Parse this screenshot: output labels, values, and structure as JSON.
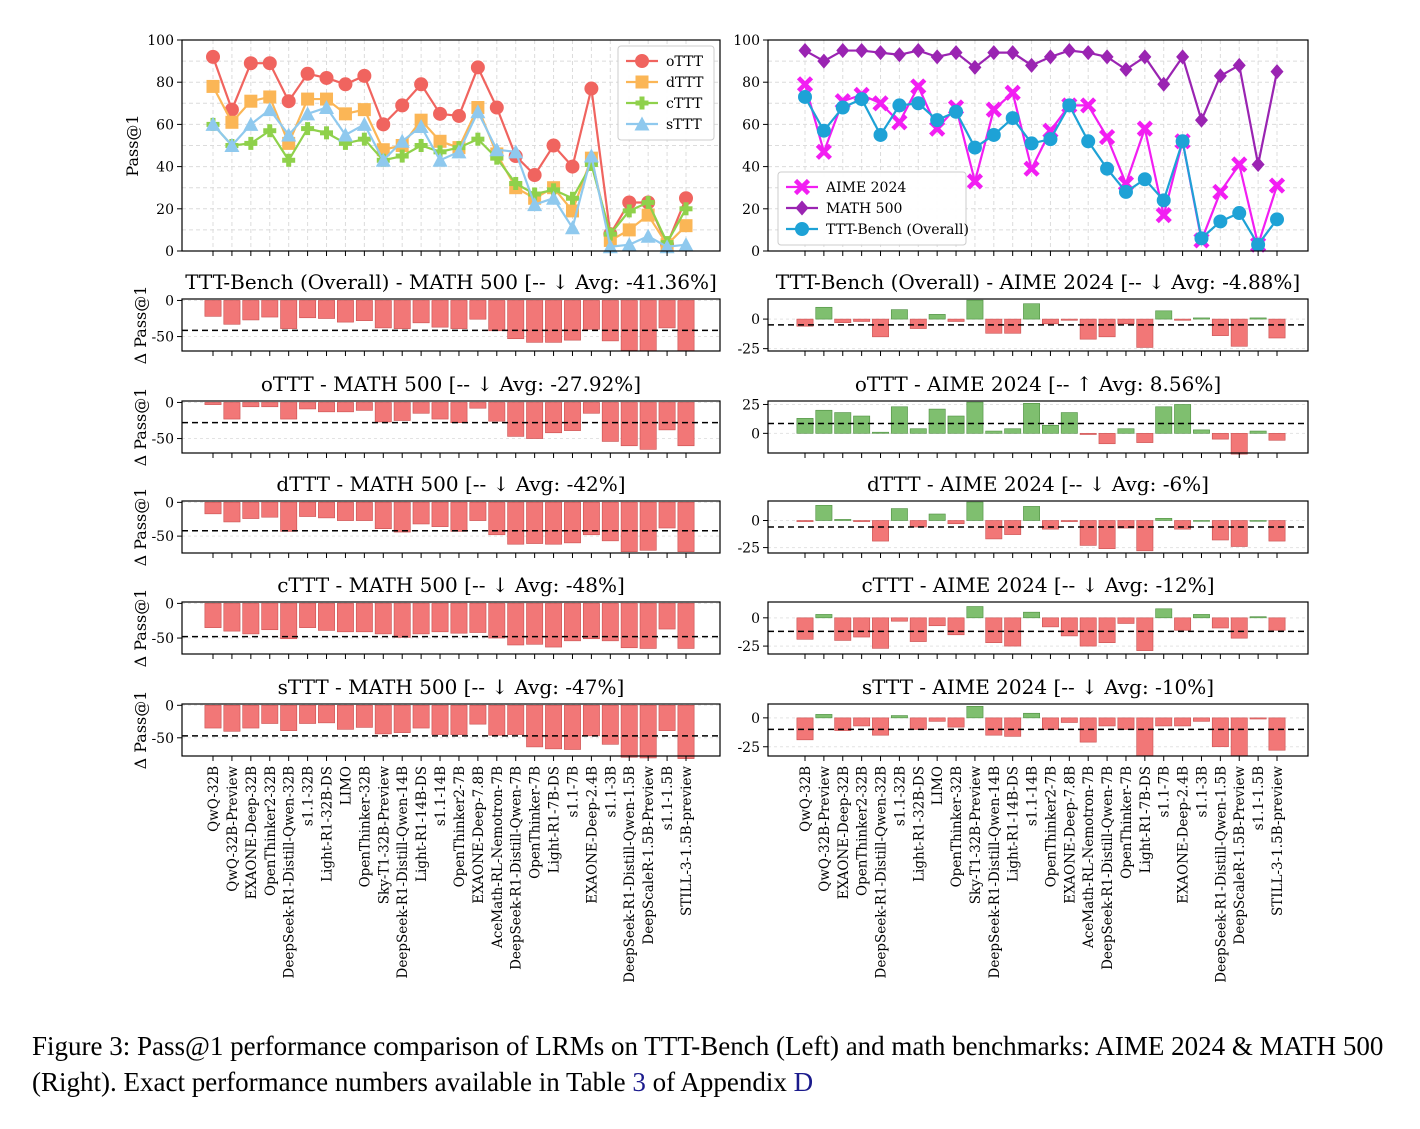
{
  "chart_data": [
    {
      "type": "line",
      "ylabel": "Pass@1",
      "ylim": [
        0,
        100
      ],
      "yticks": [
        "0",
        "20",
        "40",
        "60",
        "80",
        "100"
      ],
      "legend": "top-right",
      "grid": true,
      "series": [
        {
          "name": "oTTT",
          "color": "#f0645f",
          "marker": "circle",
          "values": [
            92,
            67,
            89,
            89,
            71,
            84,
            82,
            79,
            83,
            60,
            69,
            79,
            65,
            64,
            87,
            68,
            45,
            36,
            50,
            40,
            77,
            8,
            23,
            23,
            3,
            25
          ]
        },
        {
          "name": "dTTT",
          "color": "#fbb656",
          "marker": "square",
          "values": [
            78,
            61,
            71,
            73,
            51,
            72,
            72,
            65,
            67,
            48,
            50,
            62,
            52,
            49,
            68,
            46,
            30,
            25,
            30,
            19,
            44,
            5,
            10,
            17,
            3,
            12
          ]
        },
        {
          "name": "cTTT",
          "color": "#8fd14b",
          "marker": "plus",
          "values": [
            60,
            50,
            51,
            57,
            43,
            58,
            56,
            51,
            53,
            43,
            45,
            50,
            47,
            49,
            53,
            44,
            32,
            27,
            29,
            25,
            41,
            8,
            19,
            23,
            4,
            20
          ]
        },
        {
          "name": "sTTT",
          "color": "#8fc9ee",
          "marker": "triangle",
          "values": [
            60,
            50,
            60,
            67,
            55,
            65,
            68,
            55,
            60,
            43,
            52,
            59,
            43,
            47,
            66,
            48,
            47,
            22,
            25,
            11,
            45,
            2,
            3,
            7,
            2,
            3
          ]
        }
      ]
    },
    {
      "type": "line",
      "ylim": [
        0,
        100
      ],
      "yticks": [
        "0",
        "20",
        "40",
        "60",
        "80",
        "100"
      ],
      "legend": "bottom-left",
      "grid": true,
      "series": [
        {
          "name": "AIME 2024",
          "color": "#f21ef2",
          "marker": "x",
          "values": [
            79,
            47,
            71,
            74,
            70,
            61,
            78,
            58,
            68,
            33,
            67,
            75,
            39,
            57,
            69,
            69,
            54,
            32,
            58,
            17,
            52,
            5,
            28,
            41,
            3,
            31
          ]
        },
        {
          "name": "MATH 500",
          "color": "#9a24b2",
          "marker": "diamond",
          "values": [
            95,
            90,
            95,
            95,
            94,
            93,
            95,
            92,
            94,
            87,
            94,
            94,
            88,
            92,
            95,
            94,
            92,
            86,
            92,
            79,
            92,
            62,
            83,
            88,
            41,
            85
          ]
        },
        {
          "name": "TTT-Bench (Overall)",
          "color": "#1ea2d6",
          "marker": "circle",
          "values": [
            73,
            57,
            68,
            72,
            55,
            69,
            70,
            62,
            66,
            49,
            55,
            63,
            51,
            53,
            69,
            52,
            39,
            28,
            34,
            24,
            52,
            6,
            14,
            18,
            3,
            15
          ]
        }
      ]
    },
    {
      "type": "bar",
      "title": "TTT-Bench (Overall) - MATH 500 [-- ↓ Avg: -41.36%]",
      "ylabel": "Δ Pass@1",
      "ylim": [
        -70,
        2
      ],
      "yticks": [
        0,
        -50
      ],
      "mean": -41.36,
      "values": [
        -22,
        -33,
        -27,
        -23,
        -39,
        -24,
        -25,
        -30,
        -28,
        -38,
        -39,
        -31,
        -37,
        -39,
        -26,
        -42,
        -53,
        -58,
        -58,
        -55,
        -40,
        -56,
        -69,
        -70,
        -38,
        -70
      ]
    },
    {
      "type": "bar",
      "title": "TTT-Bench (Overall) - AIME 2024 [-- ↓ Avg: -4.88%]",
      "ylim": [
        -27,
        17
      ],
      "yticks": [
        0,
        -25
      ],
      "mean": -4.88,
      "values": [
        -6,
        10,
        -3,
        -2,
        -15,
        8,
        -8,
        4,
        -2,
        16,
        -12,
        -12,
        13,
        -4,
        -1,
        -17,
        -15,
        -4,
        -24,
        7,
        -1,
        1,
        -14,
        -23,
        1,
        -16
      ]
    },
    {
      "type": "bar",
      "title": "oTTT - MATH 500 [-- ↓ Avg: -27.92%]",
      "ylabel": "Δ Pass@1",
      "ylim": [
        -70,
        2
      ],
      "yticks": [
        0,
        -50
      ],
      "mean": -27.92,
      "values": [
        -3,
        -23,
        -6,
        -6,
        -23,
        -9,
        -13,
        -13,
        -11,
        -27,
        -25,
        -15,
        -23,
        -28,
        -8,
        -26,
        -47,
        -50,
        -42,
        -39,
        -15,
        -54,
        -60,
        -65,
        -38,
        -60
      ]
    },
    {
      "type": "bar",
      "title": "oTTT - AIME 2024 [-- ↑ Avg: 8.56%]",
      "ylim": [
        -17,
        28
      ],
      "yticks": [
        25,
        0
      ],
      "mean": 8.56,
      "values": [
        13,
        20,
        18,
        15,
        1,
        23,
        4,
        21,
        15,
        27,
        2,
        4,
        26,
        7,
        18,
        -1,
        -9,
        4,
        -8,
        23,
        25,
        3,
        -5,
        -18,
        2,
        -6
      ]
    },
    {
      "type": "bar",
      "title": "dTTT - MATH 500 [-- ↓ Avg: -42%]",
      "ylabel": "Δ Pass@1",
      "ylim": [
        -75,
        2
      ],
      "yticks": [
        0,
        -50
      ],
      "mean": -42,
      "values": [
        -17,
        -29,
        -24,
        -22,
        -43,
        -21,
        -23,
        -27,
        -27,
        -39,
        -44,
        -32,
        -36,
        -43,
        -27,
        -48,
        -62,
        -61,
        -62,
        -60,
        -48,
        -57,
        -73,
        -71,
        -38,
        -73
      ]
    },
    {
      "type": "bar",
      "title": "dTTT - AIME 2024 [-- ↓ Avg: -6%]",
      "ylim": [
        -30,
        18
      ],
      "yticks": [
        0,
        -25
      ],
      "mean": -6,
      "values": [
        -1,
        14,
        1,
        -1,
        -19,
        11,
        -6,
        6,
        -3,
        17,
        -17,
        -13,
        13,
        -8,
        -1,
        -23,
        -26,
        -7,
        -28,
        2,
        -8,
        0,
        -18,
        -24,
        0,
        -19
      ]
    },
    {
      "type": "bar",
      "title": "cTTT - MATH 500 [-- ↓ Avg: -48%]",
      "ylabel": "Δ Pass@1",
      "ylim": [
        -73,
        2
      ],
      "yticks": [
        0,
        -50
      ],
      "mean": -48,
      "values": [
        -35,
        -40,
        -44,
        -38,
        -51,
        -35,
        -39,
        -41,
        -41,
        -44,
        -49,
        -44,
        -41,
        -43,
        -42,
        -50,
        -60,
        -59,
        -63,
        -54,
        -51,
        -54,
        -64,
        -65,
        -37,
        -65
      ]
    },
    {
      "type": "bar",
      "title": "cTTT - AIME 2024 [-- ↓ Avg: -12%]",
      "ylim": [
        -32,
        14
      ],
      "yticks": [
        0,
        -25
      ],
      "mean": -12,
      "values": [
        -19,
        3,
        -20,
        -17,
        -27,
        -3,
        -21,
        -7,
        -15,
        10,
        -22,
        -25,
        5,
        -8,
        -16,
        -25,
        -22,
        -5,
        -29,
        8,
        -11,
        3,
        -9,
        -18,
        1,
        -11
      ]
    },
    {
      "type": "bar",
      "title": "sTTT - MATH 500 [-- ↓ Avg: -47%]",
      "ylabel": "Δ Pass@1",
      "ylim": [
        -78,
        2
      ],
      "yticks": [
        0,
        -50
      ],
      "mean": -47,
      "values": [
        -35,
        -40,
        -35,
        -28,
        -39,
        -28,
        -27,
        -37,
        -34,
        -44,
        -42,
        -35,
        -45,
        -45,
        -29,
        -46,
        -45,
        -64,
        -67,
        -68,
        -47,
        -60,
        -80,
        -81,
        -39,
        -82
      ]
    },
    {
      "type": "bar",
      "title": "sTTT - AIME 2024 [-- ↓ Avg: -10%]",
      "ylim": [
        -33,
        12
      ],
      "yticks": [
        0,
        -25
      ],
      "mean": -10,
      "values": [
        -19,
        3,
        -11,
        -7,
        -15,
        2,
        -10,
        -3,
        -8,
        10,
        -15,
        -16,
        4,
        -10,
        -4,
        -21,
        -7,
        -10,
        -33,
        -7,
        -7,
        -3,
        -25,
        -33,
        -1,
        -28
      ]
    }
  ],
  "models": [
    "QwQ-32B",
    "QwQ-32B-Preview",
    "EXAONE-Deep-32B",
    "OpenThinker2-32B",
    "DeepSeek-R1-Distill-Qwen-32B",
    "s1.1-32B",
    "Light-R1-32B-DS",
    "LIMO",
    "OpenThinker-32B",
    "Sky-T1-32B-Preview",
    "DeepSeek-R1-Distill-Qwen-14B",
    "Light-R1-14B-DS",
    "s1.1-14B",
    "OpenThinker2-7B",
    "EXAONE-Deep-7.8B",
    "AceMath-RL-Nemotron-7B",
    "DeepSeek-R1-Distill-Qwen-7B",
    "OpenThinker-7B",
    "Light-R1-7B-DS",
    "s1.1-7B",
    "EXAONE-Deep-2.4B",
    "s1.1-3B",
    "DeepSeek-R1-Distill-Qwen-1.5B",
    "DeepScaleR-1.5B-Preview",
    "s1.1-1.5B",
    "STILL-3-1.5B-preview"
  ],
  "colors": {
    "positive": "#7fbf6f",
    "negative": "#f27777",
    "positive_edge": "#4e8f41",
    "negative_edge": "#c95050"
  },
  "caption": {
    "text": "Figure 3: Pass@1 performance comparison of LRMs on TTT-Bench (Left) and math benchmarks: AIME 2024 & MATH 500 (Right). Exact performance numbers available in Table ",
    "table_ref": "3",
    "middle": " of Appendix ",
    "appendix_ref": "D"
  }
}
